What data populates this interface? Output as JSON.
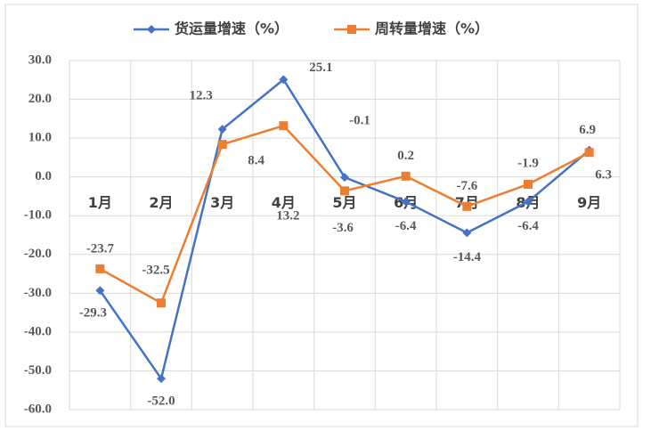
{
  "chart_data": {
    "type": "line",
    "categories": [
      "1月",
      "2月",
      "3月",
      "4月",
      "5月",
      "6月",
      "7月",
      "8月",
      "9月"
    ],
    "series": [
      {
        "name": "货运量增速（%）",
        "color": "#4472c4",
        "marker": "diamond",
        "values": [
          -29.3,
          -52.0,
          12.3,
          25.1,
          -0.1,
          -6.4,
          -14.4,
          -6.4,
          6.9
        ],
        "value_labels": [
          "-29.3",
          "-52.0",
          "12.3",
          "25.1",
          "-0.1",
          "-6.4",
          "-14.4",
          "-6.4",
          "6.9"
        ]
      },
      {
        "name": "周转量增速（%）",
        "color": "#ed7d31",
        "marker": "square",
        "values": [
          -23.7,
          -32.5,
          8.4,
          13.2,
          -3.6,
          0.2,
          -7.6,
          -1.9,
          6.3
        ],
        "value_labels": [
          "-23.7",
          "-32.5",
          "8.4",
          "13.2",
          "-3.6",
          "0.2",
          "-7.6",
          "-1.9",
          "6.3"
        ]
      }
    ],
    "ylim": [
      -60,
      30
    ],
    "yticks": [
      {
        "value": 30,
        "label": "30.0"
      },
      {
        "value": 20,
        "label": "20.0"
      },
      {
        "value": 10,
        "label": "10.0"
      },
      {
        "value": 0,
        "label": "0.0"
      },
      {
        "value": -10,
        "label": "-10.0"
      },
      {
        "value": -20,
        "label": "-20.0"
      },
      {
        "value": -30,
        "label": "-30.0"
      },
      {
        "value": -40,
        "label": "-40.0"
      },
      {
        "value": -50,
        "label": "-50.0"
      },
      {
        "value": -60,
        "label": "-60.0"
      }
    ],
    "grid": true,
    "legend": "top"
  }
}
